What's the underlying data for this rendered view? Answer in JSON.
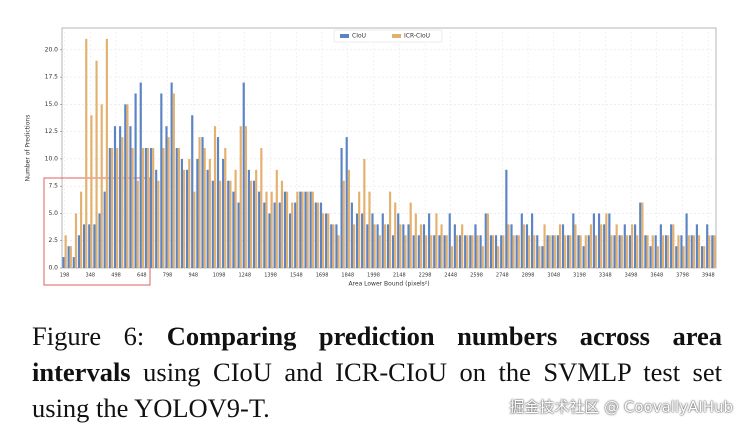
{
  "chart_data": {
    "type": "bar",
    "xlabel": "Area Lower Bound (pixels²)",
    "ylabel": "Number of Predictions",
    "categories": [
      "198",
      null,
      null,
      null,
      null,
      "348",
      null,
      null,
      null,
      null,
      "498",
      null,
      null,
      null,
      null,
      "648",
      null,
      null,
      null,
      null,
      "798",
      null,
      null,
      null,
      null,
      "948",
      null,
      null,
      null,
      null,
      "1098",
      null,
      null,
      null,
      null,
      "1248",
      null,
      null,
      null,
      null,
      "1398",
      null,
      null,
      null,
      null,
      "1548",
      null,
      null,
      null,
      null,
      "1698",
      null,
      null,
      null,
      null,
      "1848",
      null,
      null,
      null,
      null,
      "1998",
      null,
      null,
      null,
      null,
      "2148",
      null,
      null,
      null,
      null,
      "2298",
      null,
      null,
      null,
      null,
      "2448",
      null,
      null,
      null,
      null,
      "2598",
      null,
      null,
      null,
      null,
      "2748",
      null,
      null,
      null,
      null,
      "2898",
      null,
      null,
      null,
      null,
      "3048",
      null,
      null,
      null,
      null,
      "3198",
      null,
      null,
      null,
      null,
      "3348",
      null,
      null,
      null,
      null,
      "3498",
      null,
      null,
      null,
      null,
      "3648",
      null,
      null,
      null,
      null,
      "3798",
      null,
      null,
      null,
      null,
      "3948",
      null
    ],
    "series": [
      {
        "name": "CIoU",
        "color": "#5b84c4",
        "values": [
          1,
          2,
          1,
          3,
          4,
          4,
          4,
          5,
          7,
          11,
          13,
          13,
          15,
          13,
          16,
          17,
          11,
          11,
          9,
          16,
          13,
          17,
          11,
          10,
          9,
          14,
          10,
          12,
          9,
          8,
          12,
          10,
          8,
          7,
          6,
          17,
          9,
          8,
          7,
          6,
          5,
          6,
          6,
          7,
          5,
          6,
          7,
          7,
          7,
          6,
          6,
          5,
          4,
          4,
          11,
          12,
          6,
          5,
          5,
          4,
          5,
          4,
          5,
          4,
          3,
          5,
          4,
          4,
          3,
          3,
          4,
          5,
          3,
          3,
          3,
          5,
          4,
          3,
          3,
          3,
          4,
          3,
          5,
          3,
          3,
          3,
          9,
          4,
          3,
          5,
          4,
          5,
          3,
          2,
          3,
          3,
          3,
          4,
          3,
          5,
          3,
          2,
          3,
          5,
          5,
          4,
          5,
          3,
          3,
          4,
          3,
          4,
          6,
          3,
          2,
          3,
          4,
          3,
          4,
          2,
          3,
          5,
          3,
          4,
          2,
          4,
          3
        ]
      },
      {
        "name": "ICR-CIoU",
        "color": "#e3b06e",
        "values": [
          3,
          2,
          5,
          7,
          21,
          14,
          19,
          15,
          21,
          11,
          11,
          12,
          15,
          11,
          8,
          11,
          11,
          11,
          8,
          11,
          12,
          16,
          11,
          9,
          10,
          7,
          12,
          11,
          10,
          13,
          8,
          11,
          8,
          9,
          13,
          13,
          8,
          9,
          11,
          7,
          7,
          9,
          8,
          7,
          6,
          7,
          7,
          7,
          7,
          6,
          5,
          5,
          4,
          3,
          8,
          9,
          4,
          7,
          10,
          7,
          4,
          3,
          4,
          7,
          6,
          4,
          3,
          6,
          5,
          4,
          3,
          3,
          5,
          4,
          3,
          2,
          3,
          4,
          3,
          3,
          3,
          2,
          5,
          3,
          2,
          3,
          4,
          3,
          3,
          4,
          3,
          3,
          2,
          4,
          3,
          3,
          4,
          3,
          3,
          4,
          3,
          3,
          4,
          3,
          4,
          5,
          3,
          4,
          3,
          3,
          4,
          3,
          6,
          3,
          3,
          2,
          3,
          3,
          4,
          3,
          2,
          3,
          3,
          3,
          2,
          3,
          3
        ]
      }
    ],
    "ylim": [
      0,
      22
    ],
    "yticks": [
      {
        "value": 0,
        "label": "0.0"
      },
      {
        "value": 2.5,
        "label": "2.5"
      },
      {
        "value": 5,
        "label": "5.0"
      },
      {
        "value": 7.5,
        "label": "7.5"
      },
      {
        "value": 10,
        "label": "10.0"
      },
      {
        "value": 12.5,
        "label": "12.5"
      },
      {
        "value": 15,
        "label": "15.0"
      },
      {
        "value": 17.5,
        "label": "17.5"
      },
      {
        "value": 20,
        "label": "20.0"
      }
    ],
    "grid": true,
    "legend": "top"
  },
  "caption": {
    "label": "Figure 6:",
    "bold": "Comparing prediction numbers across area intervals",
    "text": "using CIoU and ICR-CIoU on the SVMLP test set using the YOLOV9-T."
  },
  "watermark": "掘金技术社区 @ CoovallyAIHub"
}
